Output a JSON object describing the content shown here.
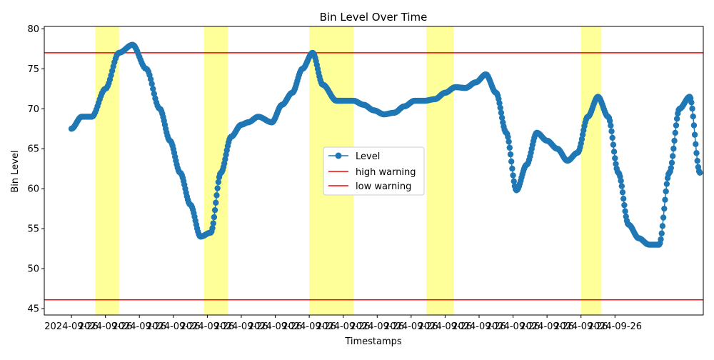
{
  "chart_data": {
    "type": "line",
    "title": "Bin Level Over Time",
    "xlabel": "Timestamps",
    "ylabel": "Bin Level",
    "x_tick_labels": [
      "2024-09-26",
      "2024-09-26",
      "2024-09-26",
      "2024-09-26",
      "2024-09-26",
      "2024-09-26",
      "2024-09-26",
      "2024-09-26",
      "2024-09-26",
      "2024-09-26",
      "2024-09-26",
      "2024-09-26",
      "2024-09-26",
      "2024-09-26",
      "2024-09-26",
      "2024-09-26",
      "2024-09-26"
    ],
    "y_ticks": [
      45,
      50,
      55,
      60,
      65,
      70,
      75,
      80
    ],
    "ylim": [
      44.2,
      80.3
    ],
    "xlim": [
      -0.8,
      17.6
    ],
    "grid": false,
    "legend": {
      "placement": "center-right",
      "entries": [
        "Level",
        "high warning",
        "low warning"
      ]
    },
    "colors": {
      "series": "#1f77b4",
      "warning": "#ff0000",
      "band": "#ffff99"
    },
    "series": [
      {
        "name": "Level",
        "x": [
          0,
          0.3,
          0.6,
          1.0,
          1.4,
          1.8,
          2.2,
          2.6,
          2.9,
          3.2,
          3.5,
          3.8,
          4.1,
          4.4,
          4.7,
          5.0,
          5.2,
          5.5,
          5.9,
          6.2,
          6.5,
          6.8,
          7.1,
          7.4,
          7.8,
          8.0,
          8.3,
          8.6,
          8.9,
          9.2,
          9.5,
          9.8,
          10.1,
          10.4,
          10.7,
          11.0,
          11.3,
          11.6,
          11.9,
          12.2,
          12.5,
          12.8,
          13.1,
          13.4,
          13.7,
          14.0,
          14.3,
          14.6,
          14.9,
          15.2,
          15.5,
          15.8,
          16.1,
          16.4,
          16.7
        ],
        "y": [
          67.5,
          69.0,
          69.0,
          72.5,
          77.0,
          78.0,
          75.0,
          70.0,
          66.0,
          62.0,
          58.0,
          54.0,
          54.5,
          62.0,
          66.5,
          68.0,
          68.3,
          69.0,
          68.3,
          70.5,
          72.0,
          75.0,
          77.0,
          73.0,
          71.0,
          71.0,
          71.0,
          70.5,
          69.8,
          69.3,
          69.5,
          70.3,
          71.0,
          71.0,
          71.2,
          72.0,
          72.7,
          72.6,
          73.3,
          74.3,
          72.0,
          67.0,
          59.8,
          63.0,
          67.0,
          66.0,
          65.0,
          63.5,
          64.5,
          69.0,
          71.5,
          69.0,
          62.0,
          55.5,
          53.8
        ]
      }
    ],
    "series_extra": {
      "x": [
        17.0,
        17.3,
        17.6,
        17.9,
        18.2,
        18.5
      ],
      "y": [
        53.0,
        53.0,
        62.0,
        70.0,
        71.5,
        62.0
      ]
    },
    "hlines": [
      {
        "name": "high warning",
        "y": 77.0
      },
      {
        "name": "low warning",
        "y": 46.1
      }
    ],
    "bands": [
      [
        0.7,
        1.4
      ],
      [
        3.9,
        4.6
      ],
      [
        7.0,
        8.3
      ],
      [
        10.45,
        11.25
      ],
      [
        15.0,
        15.6
      ]
    ]
  }
}
